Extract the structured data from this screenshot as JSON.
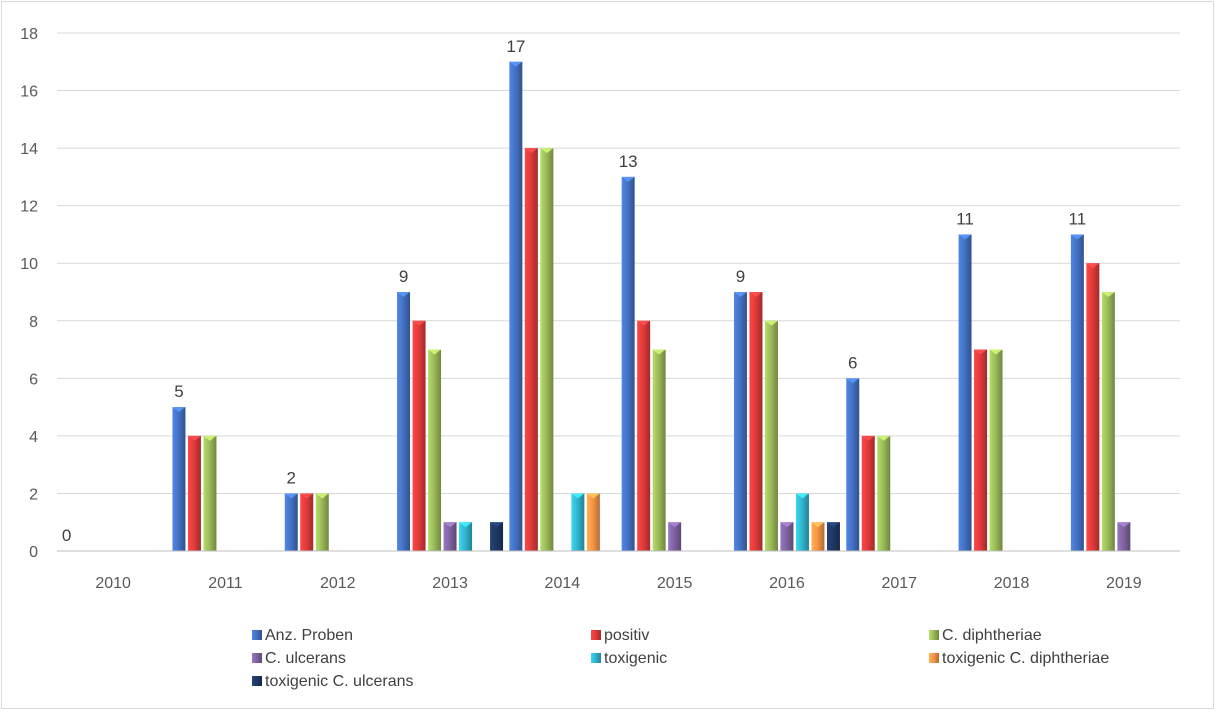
{
  "chart_data": {
    "type": "bar",
    "categories": [
      "2010",
      "2011",
      "2012",
      "2013",
      "2014",
      "2015",
      "2016",
      "2017",
      "2018",
      "2019"
    ],
    "series": [
      {
        "name": "Anz. Proben",
        "color": "#4472c4",
        "values": [
          0,
          5,
          2,
          9,
          17,
          13,
          9,
          6,
          11,
          11
        ]
      },
      {
        "name": "positiv",
        "color": "#e23b3b",
        "values": [
          0,
          4,
          2,
          8,
          14,
          8,
          9,
          4,
          7,
          10
        ]
      },
      {
        "name": "C. diphtheriae",
        "color": "#9bbb59",
        "values": [
          0,
          4,
          2,
          7,
          14,
          7,
          8,
          4,
          7,
          9
        ]
      },
      {
        "name": "C. ulcerans",
        "color": "#8064a2",
        "values": [
          0,
          0,
          0,
          1,
          0,
          1,
          1,
          0,
          0,
          1
        ]
      },
      {
        "name": "toxigenic",
        "color": "#31b6cf",
        "values": [
          0,
          0,
          0,
          1,
          2,
          0,
          2,
          0,
          0,
          0
        ]
      },
      {
        "name": "toxigenic C. diphtheriae",
        "color": "#f79646",
        "values": [
          0,
          0,
          0,
          0,
          2,
          0,
          1,
          0,
          0,
          0
        ]
      },
      {
        "name": "toxigenic C. ulcerans",
        "color": "#1f3864",
        "values": [
          0,
          0,
          0,
          1,
          0,
          0,
          1,
          0,
          0,
          0
        ]
      }
    ],
    "data_labels": [
      "0",
      "5",
      "2",
      "9",
      "17",
      "13",
      "9",
      "6",
      "11",
      "11"
    ],
    "y_ticks": [
      "0",
      "2",
      "4",
      "6",
      "8",
      "10",
      "12",
      "14",
      "16",
      "18"
    ],
    "ylim": [
      0,
      18
    ],
    "grid": true,
    "legend_position": "bottom"
  }
}
